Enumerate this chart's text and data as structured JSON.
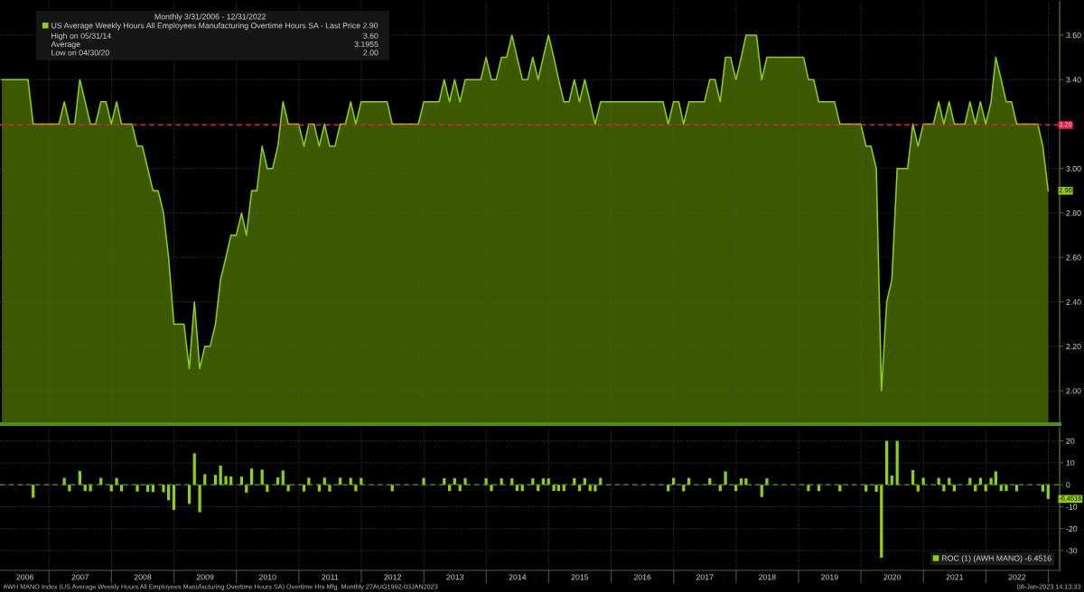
{
  "chart_data": [
    {
      "type": "area",
      "legend_title": "Monthly 3/31/2006 - 12/31/2022",
      "x": [
        "2006-03-31",
        "2006-04-30",
        "2006-05-31",
        "2006-06-30",
        "2006-07-31",
        "2006-08-31",
        "2006-09-30",
        "2006-10-31",
        "2006-11-30",
        "2006-12-31",
        "2007-01-31",
        "2007-02-28",
        "2007-03-31",
        "2007-04-30",
        "2007-05-31",
        "2007-06-30",
        "2007-07-31",
        "2007-08-31",
        "2007-09-30",
        "2007-10-31",
        "2007-11-30",
        "2007-12-31",
        "2008-01-31",
        "2008-02-29",
        "2008-03-31",
        "2008-04-30",
        "2008-05-31",
        "2008-06-30",
        "2008-07-31",
        "2008-08-31",
        "2008-09-30",
        "2008-10-31",
        "2008-11-30",
        "2008-12-31",
        "2009-01-31",
        "2009-02-28",
        "2009-03-31",
        "2009-04-30",
        "2009-05-31",
        "2009-06-30",
        "2009-07-31",
        "2009-08-31",
        "2009-09-30",
        "2009-10-31",
        "2009-11-30",
        "2009-12-31",
        "2010-01-31",
        "2010-02-28",
        "2010-03-31",
        "2010-04-30",
        "2010-05-31",
        "2010-06-30",
        "2010-07-31",
        "2010-08-31",
        "2010-09-30",
        "2010-10-31",
        "2010-11-30",
        "2010-12-31",
        "2011-01-31",
        "2011-02-28",
        "2011-03-31",
        "2011-04-30",
        "2011-05-31",
        "2011-06-30",
        "2011-07-31",
        "2011-08-31",
        "2011-09-30",
        "2011-10-31",
        "2011-11-30",
        "2011-12-31",
        "2012-01-31",
        "2012-02-29",
        "2012-03-31",
        "2012-04-30",
        "2012-05-31",
        "2012-06-30",
        "2012-07-31",
        "2012-08-31",
        "2012-09-30",
        "2012-10-31",
        "2012-11-30",
        "2012-12-31",
        "2013-01-31",
        "2013-02-28",
        "2013-03-31",
        "2013-04-30",
        "2013-05-31",
        "2013-06-30",
        "2013-07-31",
        "2013-08-31",
        "2013-09-30",
        "2013-10-31",
        "2013-11-30",
        "2013-12-31",
        "2014-01-31",
        "2014-02-28",
        "2014-03-31",
        "2014-04-30",
        "2014-05-31",
        "2014-06-30",
        "2014-07-31",
        "2014-08-31",
        "2014-09-30",
        "2014-10-31",
        "2014-11-30",
        "2014-12-31",
        "2015-01-31",
        "2015-02-28",
        "2015-03-31",
        "2015-04-30",
        "2015-05-31",
        "2015-06-30",
        "2015-07-31",
        "2015-08-31",
        "2015-09-30",
        "2015-10-31",
        "2015-11-30",
        "2015-12-31",
        "2016-01-31",
        "2016-02-29",
        "2016-03-31",
        "2016-04-30",
        "2016-05-31",
        "2016-06-30",
        "2016-07-31",
        "2016-08-31",
        "2016-09-30",
        "2016-10-31",
        "2016-11-30",
        "2016-12-31",
        "2017-01-31",
        "2017-02-28",
        "2017-03-31",
        "2017-04-30",
        "2017-05-31",
        "2017-06-30",
        "2017-07-31",
        "2017-08-31",
        "2017-09-30",
        "2017-10-31",
        "2017-11-30",
        "2017-12-31",
        "2018-01-31",
        "2018-02-28",
        "2018-03-31",
        "2018-04-30",
        "2018-05-31",
        "2018-06-30",
        "2018-07-31",
        "2018-08-31",
        "2018-09-30",
        "2018-10-31",
        "2018-11-30",
        "2018-12-31",
        "2019-01-31",
        "2019-02-28",
        "2019-03-31",
        "2019-04-30",
        "2019-05-31",
        "2019-06-30",
        "2019-07-31",
        "2019-08-31",
        "2019-09-30",
        "2019-10-31",
        "2019-11-30",
        "2019-12-31",
        "2020-01-31",
        "2020-02-29",
        "2020-03-31",
        "2020-04-30",
        "2020-05-31",
        "2020-06-30",
        "2020-07-31",
        "2020-08-31",
        "2020-09-30",
        "2020-10-31",
        "2020-11-30",
        "2020-12-31",
        "2021-01-31",
        "2021-02-28",
        "2021-03-31",
        "2021-04-30",
        "2021-05-31",
        "2021-06-30",
        "2021-07-31",
        "2021-08-31",
        "2021-09-30",
        "2021-10-31",
        "2021-11-30",
        "2021-12-31",
        "2022-01-31",
        "2022-02-28",
        "2022-03-31",
        "2022-04-30",
        "2022-05-31",
        "2022-06-30",
        "2022-07-31",
        "2022-08-31",
        "2022-09-30",
        "2022-10-31",
        "2022-11-30",
        "2022-12-31"
      ],
      "series": [
        {
          "name": "US Average Weekly Hours All Employees Manufacturing Overtime Hours SA - Last Price 2.90",
          "color": "#8fd400",
          "values": [
            3.4,
            3.4,
            3.4,
            3.4,
            3.4,
            3.4,
            3.2,
            3.2,
            3.2,
            3.2,
            3.2,
            3.2,
            3.3,
            3.2,
            3.2,
            3.4,
            3.3,
            3.2,
            3.2,
            3.3,
            3.3,
            3.2,
            3.3,
            3.2,
            3.2,
            3.2,
            3.1,
            3.1,
            3.0,
            2.9,
            2.9,
            2.8,
            2.6,
            2.3,
            2.3,
            2.3,
            2.1,
            2.4,
            2.1,
            2.2,
            2.2,
            2.3,
            2.5,
            2.6,
            2.7,
            2.7,
            2.8,
            2.7,
            2.9,
            2.9,
            3.1,
            3.0,
            3.0,
            3.1,
            3.3,
            3.2,
            3.2,
            3.2,
            3.1,
            3.2,
            3.2,
            3.1,
            3.2,
            3.1,
            3.1,
            3.2,
            3.2,
            3.3,
            3.2,
            3.3,
            3.3,
            3.3,
            3.3,
            3.3,
            3.3,
            3.2,
            3.2,
            3.2,
            3.2,
            3.2,
            3.2,
            3.3,
            3.3,
            3.3,
            3.3,
            3.4,
            3.3,
            3.4,
            3.3,
            3.4,
            3.4,
            3.4,
            3.4,
            3.5,
            3.4,
            3.4,
            3.5,
            3.5,
            3.6,
            3.5,
            3.4,
            3.4,
            3.5,
            3.4,
            3.5,
            3.6,
            3.5,
            3.4,
            3.3,
            3.3,
            3.4,
            3.3,
            3.4,
            3.3,
            3.2,
            3.3,
            3.3,
            3.3,
            3.3,
            3.3,
            3.3,
            3.3,
            3.3,
            3.3,
            3.3,
            3.3,
            3.3,
            3.3,
            3.2,
            3.3,
            3.3,
            3.2,
            3.3,
            3.3,
            3.3,
            3.3,
            3.4,
            3.4,
            3.3,
            3.5,
            3.5,
            3.4,
            3.5,
            3.6,
            3.6,
            3.6,
            3.4,
            3.5,
            3.5,
            3.5,
            3.5,
            3.5,
            3.5,
            3.5,
            3.5,
            3.4,
            3.4,
            3.3,
            3.3,
            3.3,
            3.3,
            3.2,
            3.2,
            3.2,
            3.2,
            3.2,
            3.1,
            3.1,
            3.0,
            2.0,
            2.4,
            2.5,
            3.0,
            3.0,
            3.0,
            3.2,
            3.1,
            3.2,
            3.2,
            3.2,
            3.3,
            3.2,
            3.3,
            3.2,
            3.2,
            3.2,
            3.3,
            3.2,
            3.3,
            3.2,
            3.3,
            3.5,
            3.4,
            3.3,
            3.3,
            3.2,
            3.2,
            3.2,
            3.2,
            3.2,
            3.1,
            2.9
          ]
        }
      ],
      "xlim": [
        "2006-03-20",
        "2023-03-08"
      ],
      "ylim": [
        1.85,
        3.75
      ],
      "xticks": [
        {
          "value": "2007-01-01",
          "label": null
        },
        {
          "value": "2008-01-01",
          "label": null
        },
        {
          "value": "2009-01-01",
          "label": null
        },
        {
          "value": "2010-01-01",
          "label": null
        },
        {
          "value": "2011-01-01",
          "label": null
        },
        {
          "value": "2012-01-01",
          "label": null
        },
        {
          "value": "2013-01-01",
          "label": null
        },
        {
          "value": "2014-01-01",
          "label": null
        },
        {
          "value": "2015-01-01",
          "label": null
        },
        {
          "value": "2016-01-01",
          "label": null
        },
        {
          "value": "2017-01-01",
          "label": null
        },
        {
          "value": "2018-01-01",
          "label": null
        },
        {
          "value": "2019-01-01",
          "label": null
        },
        {
          "value": "2020-01-01",
          "label": null
        },
        {
          "value": "2021-01-01",
          "label": null
        },
        {
          "value": "2022-01-01",
          "label": null
        },
        {
          "value": "2023-01-01",
          "label": null
        }
      ],
      "yticks": [
        {
          "value": 2.0,
          "label": "2.00"
        },
        {
          "value": 2.2,
          "label": "2.20"
        },
        {
          "value": 2.4,
          "label": "2.40"
        },
        {
          "value": 2.6,
          "label": "2.60"
        },
        {
          "value": 2.8,
          "label": "2.80"
        },
        {
          "value": 3.0,
          "label": "3.00"
        },
        {
          "value": 3.2,
          "label": null
        },
        {
          "value": 3.4,
          "label": "3.40"
        },
        {
          "value": 3.6,
          "label": "3.60"
        }
      ],
      "tick_labels": "y",
      "grid": true,
      "legend": "top left",
      "ref_lines": [
        {
          "axis": "y",
          "value": 3.1955,
          "label": "3.20",
          "color": "#e8193c",
          "line_style": "dashed"
        }
      ],
      "annotations": [
        "High on 05/31/14",
        "3.60",
        "Average",
        "3.1955",
        "Low on 04/30/20",
        "2.00",
        {
          "text": "2.90",
          "x": "2022-12-31",
          "y": 2.9
        }
      ]
    },
    {
      "type": "bar",
      "x": [
        "2006-03-31",
        "2006-04-30",
        "2006-05-31",
        "2006-06-30",
        "2006-07-31",
        "2006-08-31",
        "2006-09-30",
        "2006-10-31",
        "2006-11-30",
        "2006-12-31",
        "2007-01-31",
        "2007-02-28",
        "2007-03-31",
        "2007-04-30",
        "2007-05-31",
        "2007-06-30",
        "2007-07-31",
        "2007-08-31",
        "2007-09-30",
        "2007-10-31",
        "2007-11-30",
        "2007-12-31",
        "2008-01-31",
        "2008-02-29",
        "2008-03-31",
        "2008-04-30",
        "2008-05-31",
        "2008-06-30",
        "2008-07-31",
        "2008-08-31",
        "2008-09-30",
        "2008-10-31",
        "2008-11-30",
        "2008-12-31",
        "2009-01-31",
        "2009-02-28",
        "2009-03-31",
        "2009-04-30",
        "2009-05-31",
        "2009-06-30",
        "2009-07-31",
        "2009-08-31",
        "2009-09-30",
        "2009-10-31",
        "2009-11-30",
        "2009-12-31",
        "2010-01-31",
        "2010-02-28",
        "2010-03-31",
        "2010-04-30",
        "2010-05-31",
        "2010-06-30",
        "2010-07-31",
        "2010-08-31",
        "2010-09-30",
        "2010-10-31",
        "2010-11-30",
        "2010-12-31",
        "2011-01-31",
        "2011-02-28",
        "2011-03-31",
        "2011-04-30",
        "2011-05-31",
        "2011-06-30",
        "2011-07-31",
        "2011-08-31",
        "2011-09-30",
        "2011-10-31",
        "2011-11-30",
        "2011-12-31",
        "2012-01-31",
        "2012-02-29",
        "2012-03-31",
        "2012-04-30",
        "2012-05-31",
        "2012-06-30",
        "2012-07-31",
        "2012-08-31",
        "2012-09-30",
        "2012-10-31",
        "2012-11-30",
        "2012-12-31",
        "2013-01-31",
        "2013-02-28",
        "2013-03-31",
        "2013-04-30",
        "2013-05-31",
        "2013-06-30",
        "2013-07-31",
        "2013-08-31",
        "2013-09-30",
        "2013-10-31",
        "2013-11-30",
        "2013-12-31",
        "2014-01-31",
        "2014-02-28",
        "2014-03-31",
        "2014-04-30",
        "2014-05-31",
        "2014-06-30",
        "2014-07-31",
        "2014-08-31",
        "2014-09-30",
        "2014-10-31",
        "2014-11-30",
        "2014-12-31",
        "2015-01-31",
        "2015-02-28",
        "2015-03-31",
        "2015-04-30",
        "2015-05-31",
        "2015-06-30",
        "2015-07-31",
        "2015-08-31",
        "2015-09-30",
        "2015-10-31",
        "2015-11-30",
        "2015-12-31",
        "2016-01-31",
        "2016-02-29",
        "2016-03-31",
        "2016-04-30",
        "2016-05-31",
        "2016-06-30",
        "2016-07-31",
        "2016-08-31",
        "2016-09-30",
        "2016-10-31",
        "2016-11-30",
        "2016-12-31",
        "2017-01-31",
        "2017-02-28",
        "2017-03-31",
        "2017-04-30",
        "2017-05-31",
        "2017-06-30",
        "2017-07-31",
        "2017-08-31",
        "2017-09-30",
        "2017-10-31",
        "2017-11-30",
        "2017-12-31",
        "2018-01-31",
        "2018-02-28",
        "2018-03-31",
        "2018-04-30",
        "2018-05-31",
        "2018-06-30",
        "2018-07-31",
        "2018-08-31",
        "2018-09-30",
        "2018-10-31",
        "2018-11-30",
        "2018-12-31",
        "2019-01-31",
        "2019-02-28",
        "2019-03-31",
        "2019-04-30",
        "2019-05-31",
        "2019-06-30",
        "2019-07-31",
        "2019-08-31",
        "2019-09-30",
        "2019-10-31",
        "2019-11-30",
        "2019-12-31",
        "2020-01-31",
        "2020-02-29",
        "2020-03-31",
        "2020-04-30",
        "2020-05-31",
        "2020-06-30",
        "2020-07-31",
        "2020-08-31",
        "2020-09-30",
        "2020-10-31",
        "2020-11-30",
        "2020-12-31",
        "2021-01-31",
        "2021-02-28",
        "2021-03-31",
        "2021-04-30",
        "2021-05-31",
        "2021-06-30",
        "2021-07-31",
        "2021-08-31",
        "2021-09-30",
        "2021-10-31",
        "2021-11-30",
        "2021-12-31",
        "2022-01-31",
        "2022-02-28",
        "2022-03-31",
        "2022-04-30",
        "2022-05-31",
        "2022-06-30",
        "2022-07-31",
        "2022-08-31",
        "2022-09-30",
        "2022-10-31",
        "2022-11-30",
        "2022-12-31"
      ],
      "series": [
        {
          "name": "ROC (1) (AWH MANO) -6.4516",
          "color": "#8fd400",
          "values": [
            0,
            0,
            0,
            0,
            0,
            0,
            -5.9,
            0,
            0,
            0,
            0,
            0,
            3.1,
            -3.0,
            0,
            6.3,
            -2.9,
            -3.0,
            0,
            3.1,
            0,
            -3.0,
            3.1,
            -3.0,
            0,
            0,
            -3.1,
            0,
            -3.2,
            -3.3,
            0,
            -3.4,
            -7.1,
            -11.5,
            0,
            0,
            -8.7,
            14.3,
            -12.5,
            4.8,
            0,
            4.5,
            8.7,
            4.0,
            3.8,
            0,
            3.7,
            -3.6,
            7.4,
            0,
            6.9,
            -3.2,
            0,
            3.3,
            6.5,
            -3.0,
            0,
            0,
            -3.1,
            3.2,
            0,
            -3.1,
            3.2,
            -3.1,
            0,
            3.2,
            0,
            3.1,
            -3.0,
            3.1,
            0,
            0,
            0,
            0,
            0,
            -3.0,
            0,
            0,
            0,
            0,
            0,
            3.1,
            0,
            0,
            0,
            3.0,
            -2.9,
            3.0,
            -2.9,
            3.0,
            0,
            0,
            0,
            2.9,
            -2.9,
            0,
            2.9,
            0,
            2.9,
            -2.8,
            -2.9,
            0,
            2.9,
            -2.9,
            2.9,
            2.9,
            -2.8,
            -2.9,
            -2.9,
            0,
            3.0,
            -2.9,
            3.0,
            -2.9,
            -3.0,
            3.1,
            0,
            0,
            0,
            0,
            0,
            0,
            0,
            0,
            0,
            0,
            0,
            0,
            -3.0,
            3.1,
            0,
            -3.0,
            3.1,
            0,
            0,
            0,
            3.0,
            0,
            -2.9,
            6.1,
            0,
            -2.9,
            2.9,
            2.9,
            0,
            0,
            -5.6,
            2.9,
            0,
            0,
            0,
            0,
            0,
            0,
            0,
            -2.9,
            0,
            -2.9,
            0,
            0,
            0,
            -3.0,
            0,
            0,
            0,
            0,
            -3.1,
            0,
            -3.2,
            -33.3,
            20.0,
            4.2,
            20.0,
            0,
            0,
            6.7,
            -3.1,
            3.2,
            0,
            0,
            3.1,
            -3.0,
            3.1,
            -3.0,
            0,
            0,
            3.1,
            -3.0,
            3.1,
            -3.0,
            3.1,
            6.1,
            -2.9,
            -2.9,
            0,
            -3.0,
            0,
            0,
            0,
            0,
            -3.1,
            -6.4516
          ]
        }
      ],
      "xlim": [
        "2006-03-20",
        "2023-03-08"
      ],
      "ylim": [
        -39,
        26
      ],
      "xticks": [
        {
          "value": "2007-01-01",
          "label": null
        },
        {
          "value": "2008-01-01",
          "label": null
        },
        {
          "value": "2009-01-01",
          "label": null
        },
        {
          "value": "2010-01-01",
          "label": null
        },
        {
          "value": "2011-01-01",
          "label": null
        },
        {
          "value": "2012-01-01",
          "label": null
        },
        {
          "value": "2013-01-01",
          "label": null
        },
        {
          "value": "2014-01-01",
          "label": null
        },
        {
          "value": "2015-01-01",
          "label": null
        },
        {
          "value": "2016-01-01",
          "label": null
        },
        {
          "value": "2017-01-01",
          "label": null
        },
        {
          "value": "2018-01-01",
          "label": null
        },
        {
          "value": "2019-01-01",
          "label": null
        },
        {
          "value": "2020-01-01",
          "label": null
        },
        {
          "value": "2021-01-01",
          "label": null
        },
        {
          "value": "2022-01-01",
          "label": null
        },
        {
          "value": "2023-01-01",
          "label": null
        },
        {
          "value": "2006-08-13",
          "label": "2006"
        },
        {
          "value": "2007-07-02",
          "label": "2007"
        },
        {
          "value": "2008-07-02",
          "label": "2008"
        },
        {
          "value": "2009-07-02",
          "label": "2009"
        },
        {
          "value": "2010-07-02",
          "label": "2010"
        },
        {
          "value": "2011-07-02",
          "label": "2011"
        },
        {
          "value": "2012-07-02",
          "label": "2012"
        },
        {
          "value": "2013-07-02",
          "label": "2013"
        },
        {
          "value": "2014-07-02",
          "label": "2014"
        },
        {
          "value": "2015-07-02",
          "label": "2015"
        },
        {
          "value": "2016-07-02",
          "label": "2016"
        },
        {
          "value": "2017-07-02",
          "label": "2017"
        },
        {
          "value": "2018-07-02",
          "label": "2018"
        },
        {
          "value": "2019-07-02",
          "label": "2019"
        },
        {
          "value": "2020-07-02",
          "label": "2020"
        },
        {
          "value": "2021-07-02",
          "label": "2021"
        },
        {
          "value": "2022-07-02",
          "label": "2022"
        }
      ],
      "yticks": [
        -30,
        -20,
        -10,
        0,
        10,
        20
      ],
      "grid": true,
      "legend": "bottom right",
      "ref_lines": [
        {
          "axis": "y",
          "value": 0,
          "color": "#5f9a00",
          "line_style": "dashed"
        }
      ],
      "annotations": [
        {
          "text": "-6.4516",
          "x": "2022-12-31",
          "y": -6.4516
        },
        "AWH MANO Index (US Average Weekly Hours All Employees Manufacturing Overtime Hours SA) Overtime Hrs Mfg  Monthly 27AUG1992-03JAN2023",
        "08-Jan-2023 14:13:33"
      ]
    }
  ]
}
